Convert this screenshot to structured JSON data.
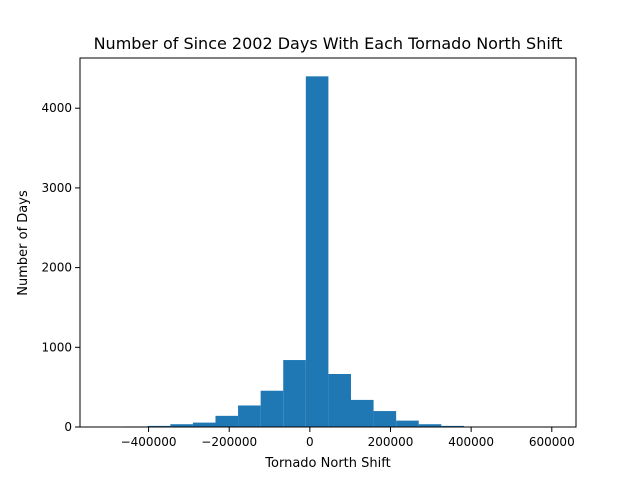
{
  "chart_data": {
    "type": "bar",
    "title": "Number of Since 2002 Days With Each Tornado North Shift",
    "xlabel": "Tornado North Shift",
    "ylabel": "Number of Days",
    "xlim": [
      -570000,
      660000
    ],
    "ylim": [
      0,
      4630
    ],
    "xticks": [
      -400000,
      -200000,
      0,
      200000,
      400000,
      600000
    ],
    "xtick_labels": [
      "−400000",
      "−200000",
      "0",
      "200000",
      "400000",
      "600000"
    ],
    "yticks": [
      0,
      1000,
      2000,
      3000,
      4000
    ],
    "ytick_labels": [
      "0",
      "1000",
      "2000",
      "3000",
      "4000"
    ],
    "bin_edges": [
      -514000,
      -458000,
      -402000,
      -346000,
      -290000,
      -234000,
      -178000,
      -122000,
      -66000,
      -10000,
      46000,
      102000,
      158000,
      214000,
      270000,
      326000,
      382000,
      438000,
      494000,
      550000,
      606000
    ],
    "values": [
      3,
      7,
      14,
      35,
      55,
      140,
      270,
      455,
      840,
      4400,
      665,
      340,
      200,
      80,
      35,
      14,
      6,
      3,
      2,
      1
    ],
    "bar_color": "#1f77b4",
    "grid": false,
    "legend": "none"
  }
}
